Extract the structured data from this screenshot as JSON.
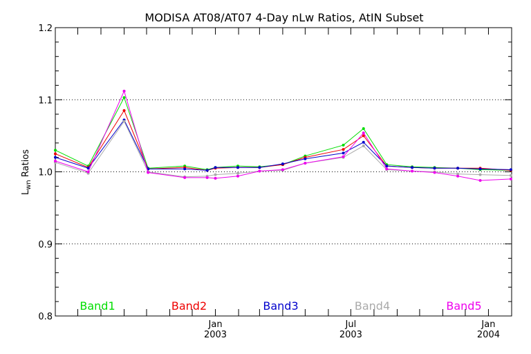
{
  "chart_data": {
    "type": "line",
    "title": "MODISA AT08/AT07 4-Day nLw Ratios, AtIN Subset",
    "ylabel_main": "L",
    "ylabel_sub": "wn",
    "ylabel_rest": " Ratios",
    "ylim": [
      0.8,
      1.2
    ],
    "yticks": [
      "0.8",
      "0.9",
      "1.0",
      "1.1",
      "1.2"
    ],
    "gridlines": [
      0.9,
      1.0,
      1.1
    ],
    "grid": true,
    "xlim": [
      "2002-06-01",
      "2004-02-01"
    ],
    "xtick_labels": [
      {
        "date": "2003-01-01",
        "line1": "Jan",
        "line2": "2003"
      },
      {
        "date": "2003-07-01",
        "line1": "Jul",
        "line2": "2003"
      },
      {
        "date": "2004-01-01",
        "line1": "Jan",
        "line2": "2004"
      }
    ],
    "xtick_dates": [
      "2002-07-01",
      "2002-08-01",
      "2002-09-01",
      "2002-10-01",
      "2002-11-01",
      "2002-12-01",
      "2003-01-01",
      "2003-02-01",
      "2003-03-01",
      "2003-04-01",
      "2003-05-01",
      "2003-06-01",
      "2003-07-01",
      "2003-08-01",
      "2003-09-01",
      "2003-10-01",
      "2003-11-01",
      "2003-12-01",
      "2004-01-01"
    ],
    "x": [
      "2002-06-01",
      "2002-07-15",
      "2002-09-01",
      "2002-10-03",
      "2002-11-21",
      "2002-12-21",
      "2003-01-01",
      "2003-01-31",
      "2003-03-01",
      "2003-04-01",
      "2003-05-01",
      "2003-06-21",
      "2003-07-18",
      "2003-08-18",
      "2003-09-21",
      "2003-10-21",
      "2003-11-21",
      "2003-12-21",
      "2004-01-31"
    ],
    "series": [
      {
        "name": "Band1",
        "color": "#00dd00",
        "values": [
          1.03,
          1.008,
          1.103,
          1.005,
          1.008,
          1.003,
          1.006,
          1.008,
          1.007,
          1.01,
          1.022,
          1.037,
          1.06,
          1.01,
          1.007,
          1.006,
          1.005,
          1.003,
          1.002
        ]
      },
      {
        "name": "Band2",
        "color": "#ee0000",
        "values": [
          1.025,
          1.006,
          1.085,
          1.004,
          1.006,
          1.002,
          1.005,
          1.006,
          1.006,
          1.01,
          1.02,
          1.031,
          1.05,
          1.008,
          1.006,
          1.005,
          1.005,
          1.005,
          1.002
        ]
      },
      {
        "name": "Band3",
        "color": "#0000cc",
        "values": [
          1.02,
          1.005,
          1.072,
          1.004,
          1.004,
          1.002,
          1.006,
          1.006,
          1.006,
          1.011,
          1.018,
          1.026,
          1.041,
          1.008,
          1.006,
          1.005,
          1.005,
          1.004,
          1.003
        ]
      },
      {
        "name": "Band4",
        "color": "#aaaaaa",
        "values": [
          1.013,
          0.998,
          1.07,
          1.0,
          0.993,
          0.994,
          0.996,
          0.998,
          1.001,
          1.002,
          1.012,
          1.02,
          1.036,
          1.003,
          1.001,
          1.0,
          0.997,
          0.996,
          0.995
        ]
      },
      {
        "name": "Band5",
        "color": "#ee00ee",
        "values": [
          1.015,
          1.0,
          1.112,
          0.999,
          0.992,
          0.992,
          0.991,
          0.994,
          1.001,
          1.003,
          1.012,
          1.021,
          1.054,
          1.004,
          1.001,
          0.999,
          0.994,
          0.988,
          0.99
        ]
      }
    ]
  }
}
